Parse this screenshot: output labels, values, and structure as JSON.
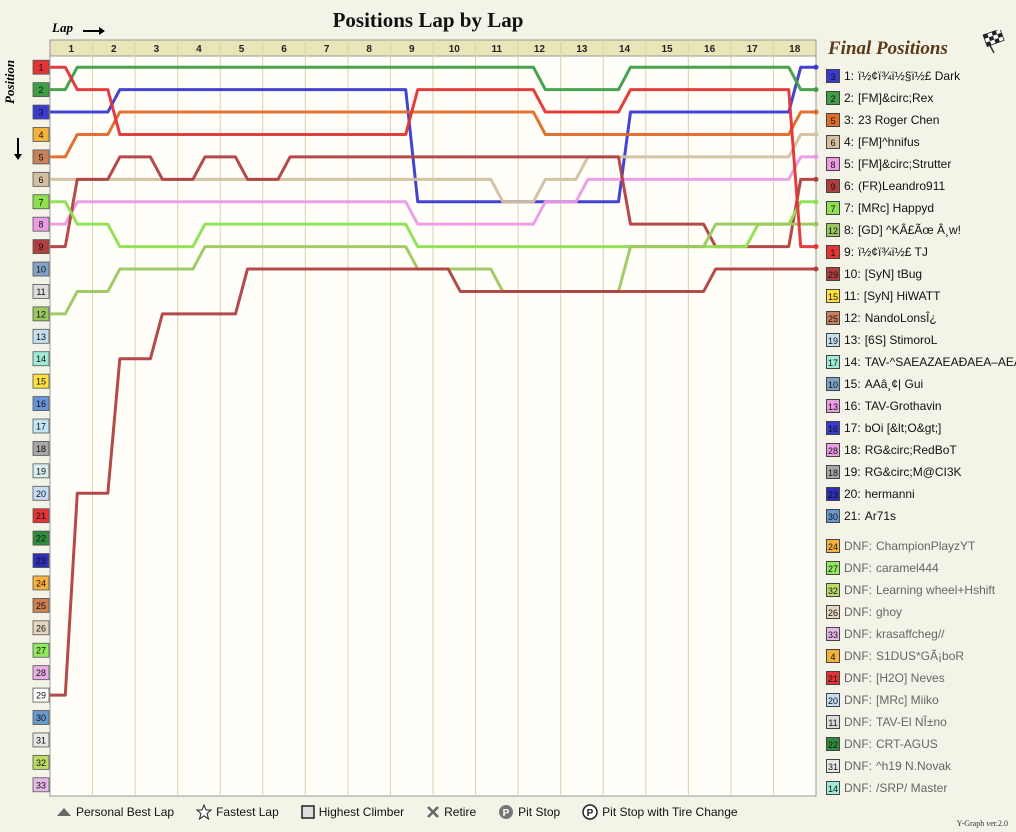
{
  "title": "Positions Lap by Lap",
  "axis": {
    "x_label": "Lap",
    "y_label": "Position"
  },
  "final_title": "Final Positions",
  "laps": [
    "1",
    "2",
    "3",
    "4",
    "5",
    "6",
    "7",
    "8",
    "9",
    "10",
    "11",
    "12",
    "13",
    "14",
    "15",
    "16",
    "17",
    "18"
  ],
  "positions": [
    "1",
    "2",
    "3",
    "4",
    "5",
    "6",
    "7",
    "8",
    "9",
    "10",
    "11",
    "12",
    "13",
    "14",
    "15",
    "16",
    "17",
    "18",
    "19",
    "20",
    "21",
    "22",
    "23",
    "24",
    "25",
    "26",
    "27",
    "28",
    "29",
    "30",
    "31",
    "32",
    "33"
  ],
  "position_colors": [
    "#e33333",
    "#3f9e45",
    "#3a3ad0",
    "#f0b23a",
    "#c8825a",
    "#d4bfa0",
    "#8ee050",
    "#ec9be5",
    "#b04040",
    "#7fa4c8",
    "#dcdcdc",
    "#9cc860",
    "#c4e0ef",
    "#a0ead8",
    "#ffe03c",
    "#6a94d8",
    "#bfe6f2",
    "#a8a8a8",
    "#d8eef0",
    "#c6ddf7",
    "#e33333",
    "#2e8c3c",
    "#2e2eb8",
    "#f8b040",
    "#d08050",
    "#e6d6c0",
    "#90ea60",
    "#eaaee6",
    "#ffffff",
    "#6699cc",
    "#e8e8e8",
    "#bbdd66",
    "#e6b8e6"
  ],
  "final_positions": [
    {
      "pos": "1:",
      "name": "ï½¢ï¾ï½§ï½£ Dark",
      "start": "3",
      "color": "#3a3ad0"
    },
    {
      "pos": "2:",
      "name": "[FM]&circ;Rex",
      "start": "2",
      "color": "#3f9e45"
    },
    {
      "pos": "3:",
      "name": "23 Roger Chen",
      "start": "5",
      "color": "#e06a28"
    },
    {
      "pos": "4:",
      "name": "[FM]^hnifus",
      "start": "6",
      "color": "#d4bfa0"
    },
    {
      "pos": "5:",
      "name": "[FM]&circ;Strutter",
      "start": "8",
      "color": "#ec9be5"
    },
    {
      "pos": "6:",
      "name": "(FR)Leandro911",
      "start": "9",
      "color": "#b04040"
    },
    {
      "pos": "7:",
      "name": "[MRc] Happyd",
      "start": "7",
      "color": "#8ee050"
    },
    {
      "pos": "8:",
      "name": "[GD] ^KÂ£Ãœ Â¸w!",
      "start": "12",
      "color": "#9cc860"
    },
    {
      "pos": "9:",
      "name": "ï½¢ï¾ï½£ TJ",
      "start": "1",
      "color": "#e33333"
    },
    {
      "pos": "10:",
      "name": "[SyN] tBug",
      "start": "29",
      "color": "#b04040"
    },
    {
      "pos": "11:",
      "name": "[SyN] HiWATT",
      "start": "15",
      "color": "#ffe03c"
    },
    {
      "pos": "12:",
      "name": "NandoLonsÎ¿",
      "start": "25",
      "color": "#c8825a"
    },
    {
      "pos": "13:",
      "name": "[6S] StimoroL",
      "start": "19",
      "color": "#c4e0ef"
    },
    {
      "pos": "14:",
      "name": "TAV-^SAEAZAEAÐAEA–AEA‰",
      "start": "17",
      "color": "#a0ead8"
    },
    {
      "pos": "15:",
      "name": "AAâ¸¢| Gui",
      "start": "10",
      "color": "#7fa4c8"
    },
    {
      "pos": "16:",
      "name": "TAV-Grothavin",
      "start": "13",
      "color": "#ec9be5"
    },
    {
      "pos": "17:",
      "name": "bOi [&lt;O&gt;]",
      "start": "16",
      "color": "#3a3ad0"
    },
    {
      "pos": "18:",
      "name": "RG&circ;RedBoT",
      "start": "28",
      "color": "#ec9be5"
    },
    {
      "pos": "19:",
      "name": "RG&circ;M@CI3K",
      "start": "18",
      "color": "#a8a8a8"
    },
    {
      "pos": "20:",
      "name": "hermanni",
      "start": "23",
      "color": "#2e2eb8"
    },
    {
      "pos": "21:",
      "name": "Ar71s",
      "start": "30",
      "color": "#6699cc"
    }
  ],
  "dnf": [
    {
      "label": "DNF:",
      "name": "ChampionPlayzYT",
      "start": "24",
      "color": "#f8b040"
    },
    {
      "label": "DNF:",
      "name": "caramel444",
      "start": "27",
      "color": "#90ea60"
    },
    {
      "label": "DNF:",
      "name": "Learning wheel+Hshift",
      "start": "32",
      "color": "#bbdd66"
    },
    {
      "label": "DNF:",
      "name": "ghoy",
      "start": "26",
      "color": "#e6d6c0"
    },
    {
      "label": "DNF:",
      "name": "krasaffcheg//",
      "start": "33",
      "color": "#e6b8e6"
    },
    {
      "label": "DNF:",
      "name": "S1DUS*GÃ¡boR",
      "start": "4",
      "color": "#f0b23a"
    },
    {
      "label": "DNF:",
      "name": "[H2O] Neves",
      "start": "21",
      "color": "#e33333"
    },
    {
      "label": "DNF:",
      "name": "[MRc] Miiko",
      "start": "20",
      "color": "#c6ddf7"
    },
    {
      "label": "DNF:",
      "name": "TAV-El NÎ±no",
      "start": "11",
      "color": "#dcdcdc"
    },
    {
      "label": "DNF:",
      "name": "CRT-AGUS",
      "start": "22",
      "color": "#2e8c3c"
    },
    {
      "label": "DNF:",
      "name": "^h19 N.Novak",
      "start": "31",
      "color": "#e8e8e8"
    },
    {
      "label": "DNF:",
      "name": "/SRP/ Master",
      "start": "14",
      "color": "#a0ead8"
    }
  ],
  "legend": {
    "personal_best": "Personal Best Lap",
    "fastest": "Fastest Lap",
    "climber": "Highest Climber",
    "retire": "Retire",
    "pit": "Pit Stop",
    "pit_tire": "Pit Stop with Tire Change",
    "pit_glyph": "P"
  },
  "version": "Y-Graph ver.2.0",
  "chart_data": {
    "type": "line",
    "title": "Positions Lap by Lap",
    "xlabel": "Lap",
    "ylabel": "Position",
    "x": [
      0,
      1,
      2,
      3,
      4,
      5,
      6,
      7,
      8,
      9,
      10,
      11,
      12,
      13,
      14,
      15,
      16,
      17,
      18
    ],
    "ylim": [
      1,
      33
    ],
    "y_inverted": true,
    "series": [
      {
        "name": "ï½¢ï¾ï½§ï½£ Dark",
        "color": "#3a3ad0",
        "values": [
          3,
          3,
          2,
          2,
          2,
          2,
          2,
          2,
          2,
          7,
          7,
          7,
          7,
          7,
          3,
          3,
          3,
          3,
          1
        ]
      },
      {
        "name": "[FM]&circ;Rex",
        "color": "#3f9e45",
        "values": [
          2,
          1,
          1,
          1,
          1,
          1,
          1,
          1,
          1,
          1,
          1,
          1,
          2,
          2,
          1,
          1,
          1,
          1,
          2
        ]
      },
      {
        "name": "23 Roger Chen",
        "color": "#e06a28",
        "values": [
          5,
          4,
          3,
          3,
          3,
          3,
          3,
          3,
          3,
          3,
          3,
          3,
          4,
          4,
          4,
          4,
          4,
          4,
          3
        ]
      },
      {
        "name": "[FM]^hnifus",
        "color": "#d4bfa0",
        "values": [
          6,
          6,
          6,
          6,
          6,
          6,
          6,
          6,
          6,
          6,
          6,
          7,
          6,
          5,
          5,
          5,
          5,
          5,
          4
        ]
      },
      {
        "name": "[FM]&circ;Strutter",
        "color": "#ec9be5",
        "values": [
          8,
          7,
          7,
          7,
          7,
          7,
          7,
          7,
          7,
          8,
          8,
          8,
          7,
          6,
          6,
          6,
          6,
          6,
          5
        ]
      },
      {
        "name": "(FR)Leandro911",
        "color": "#b04040",
        "values": [
          9,
          6,
          5,
          6,
          5,
          6,
          5,
          5,
          5,
          5,
          5,
          5,
          5,
          5,
          8,
          8,
          9,
          9,
          6
        ]
      },
      {
        "name": "[MRc] Happyd",
        "color": "#8ee050",
        "values": [
          7,
          8,
          9,
          9,
          8,
          8,
          8,
          8,
          8,
          9,
          9,
          9,
          9,
          9,
          9,
          9,
          9,
          8,
          7
        ]
      },
      {
        "name": "[GD] ^KÂ£Ãœ Â¸w!",
        "color": "#9cc860",
        "values": [
          12,
          11,
          10,
          10,
          9,
          9,
          9,
          9,
          9,
          10,
          10,
          11,
          11,
          11,
          9,
          9,
          8,
          8,
          8
        ]
      },
      {
        "name": "ï½¢ï¾ï½£ TJ",
        "color": "#e33333",
        "values": [
          1,
          2,
          4,
          4,
          4,
          4,
          4,
          4,
          4,
          2,
          2,
          2,
          3,
          3,
          2,
          2,
          2,
          2,
          9
        ]
      },
      {
        "name": "[SyN] tBug",
        "color": "#b04040",
        "values": [
          29,
          20,
          14,
          12,
          12,
          10,
          10,
          10,
          10,
          10,
          11,
          11,
          11,
          11,
          11,
          11,
          10,
          10,
          10
        ]
      }
    ]
  }
}
